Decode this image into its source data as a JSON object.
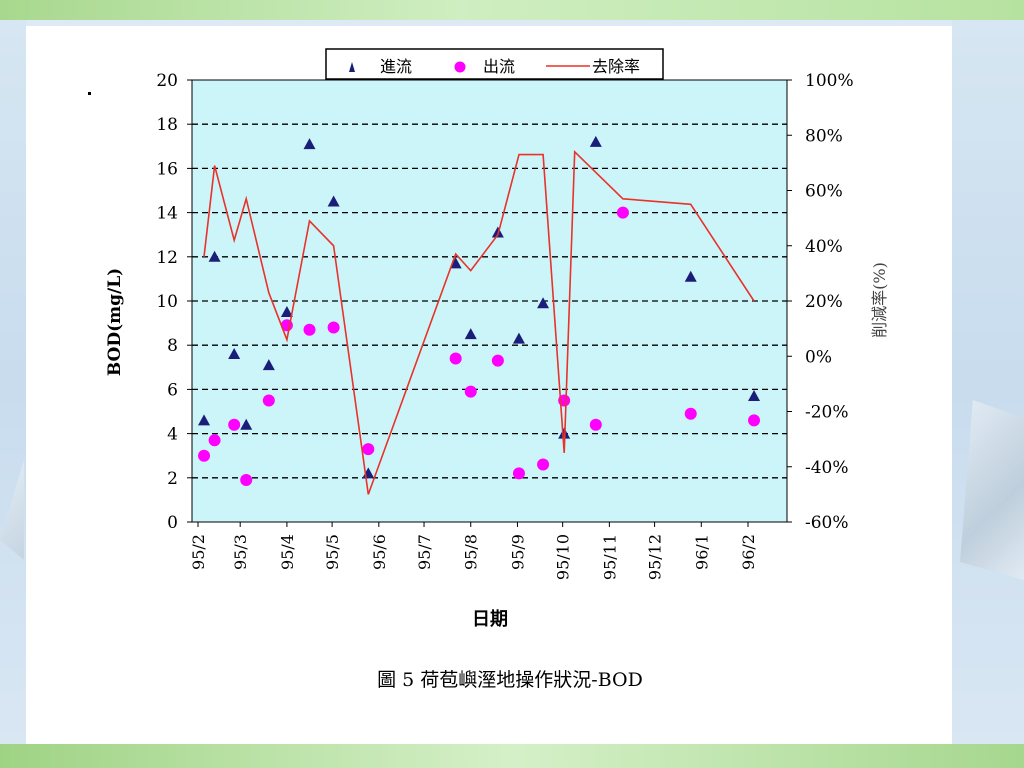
{
  "colors": {
    "plot_bg": "#ccf5fa",
    "inflow": "#1b1e79",
    "outflow": "#ff00ff",
    "removal": "#e8322a"
  },
  "chart_data": {
    "type": "line",
    "title": "",
    "xlabel": "日期",
    "ylabel_left": "BOD(mg/L)",
    "ylabel_right": "削減率(%)",
    "ylim_left": [
      0,
      20
    ],
    "ylim_right": [
      -60,
      100
    ],
    "yticks_left": [
      "0",
      "2",
      "4",
      "6",
      "8",
      "10",
      "12",
      "14",
      "16",
      "18",
      "20"
    ],
    "yticks_right": [
      "-60%",
      "-40%",
      "-20%",
      "0%",
      "20%",
      "40%",
      "60%",
      "80%",
      "100%"
    ],
    "xticks": [
      "95/2",
      "95/3",
      "95/4",
      "95/5",
      "95/6",
      "95/7",
      "95/8",
      "95/9",
      "95/10",
      "95/11",
      "95/12",
      "96/1",
      "96/2"
    ],
    "grid": "horizontal dashed",
    "legend_position": "top",
    "series": [
      {
        "name": "進流",
        "marker": "triangle",
        "axis": "left",
        "points": [
          [
            "95/2/05",
            4.6
          ],
          [
            "95/2/12",
            12.0
          ],
          [
            "95/2/25",
            7.6
          ],
          [
            "95/3/05",
            4.4
          ],
          [
            "95/3/20",
            7.1
          ],
          [
            "95/4/01",
            9.5
          ],
          [
            "95/4/16",
            17.1
          ],
          [
            "95/5/02",
            14.5
          ],
          [
            "95/5/25",
            2.2
          ],
          [
            "95/7/22",
            11.7
          ],
          [
            "95/8/01",
            8.5
          ],
          [
            "95/8/19",
            13.1
          ],
          [
            "95/9/02",
            8.3
          ],
          [
            "95/9/18",
            9.9
          ],
          [
            "95/10/02",
            4.0
          ],
          [
            "95/10/23",
            17.2
          ],
          [
            "95/12/25",
            11.1
          ],
          [
            "96/2/05",
            5.7
          ]
        ]
      },
      {
        "name": "出流",
        "marker": "circle",
        "axis": "left",
        "points": [
          [
            "95/2/05",
            3.0
          ],
          [
            "95/2/12",
            3.7
          ],
          [
            "95/2/25",
            4.4
          ],
          [
            "95/3/05",
            1.9
          ],
          [
            "95/3/20",
            5.5
          ],
          [
            "95/4/01",
            8.9
          ],
          [
            "95/4/16",
            8.7
          ],
          [
            "95/5/02",
            8.8
          ],
          [
            "95/5/25",
            3.3
          ],
          [
            "95/7/22",
            7.4
          ],
          [
            "95/8/01",
            5.9
          ],
          [
            "95/8/19",
            7.3
          ],
          [
            "95/9/02",
            2.2
          ],
          [
            "95/9/18",
            2.6
          ],
          [
            "95/10/02",
            5.5
          ],
          [
            "95/10/23",
            4.4
          ],
          [
            "95/11/10",
            14.0
          ],
          [
            "95/12/25",
            4.9
          ],
          [
            "96/2/05",
            4.6
          ]
        ]
      },
      {
        "name": "去除率",
        "marker": "line",
        "axis": "right",
        "points": [
          [
            "95/2/05",
            36
          ],
          [
            "95/2/12",
            69
          ],
          [
            "95/2/25",
            42
          ],
          [
            "95/3/05",
            57
          ],
          [
            "95/3/20",
            23
          ],
          [
            "95/4/01",
            6
          ],
          [
            "95/4/16",
            49
          ],
          [
            "95/5/02",
            40
          ],
          [
            "95/5/25",
            -50
          ],
          [
            "95/7/22",
            37
          ],
          [
            "95/8/01",
            31
          ],
          [
            "95/8/19",
            44
          ],
          [
            "95/9/02",
            73
          ],
          [
            "95/9/18",
            73
          ],
          [
            "95/10/02",
            -35
          ],
          [
            "95/10/09",
            74
          ],
          [
            "95/11/10",
            57
          ],
          [
            "95/12/25",
            55
          ],
          [
            "96/2/05",
            20
          ]
        ]
      }
    ]
  },
  "caption": "圖 5  荷苞嶼溼地操作狀況-BOD",
  "legend": {
    "inflow": "進流",
    "outflow": "出流",
    "removal": "去除率"
  }
}
